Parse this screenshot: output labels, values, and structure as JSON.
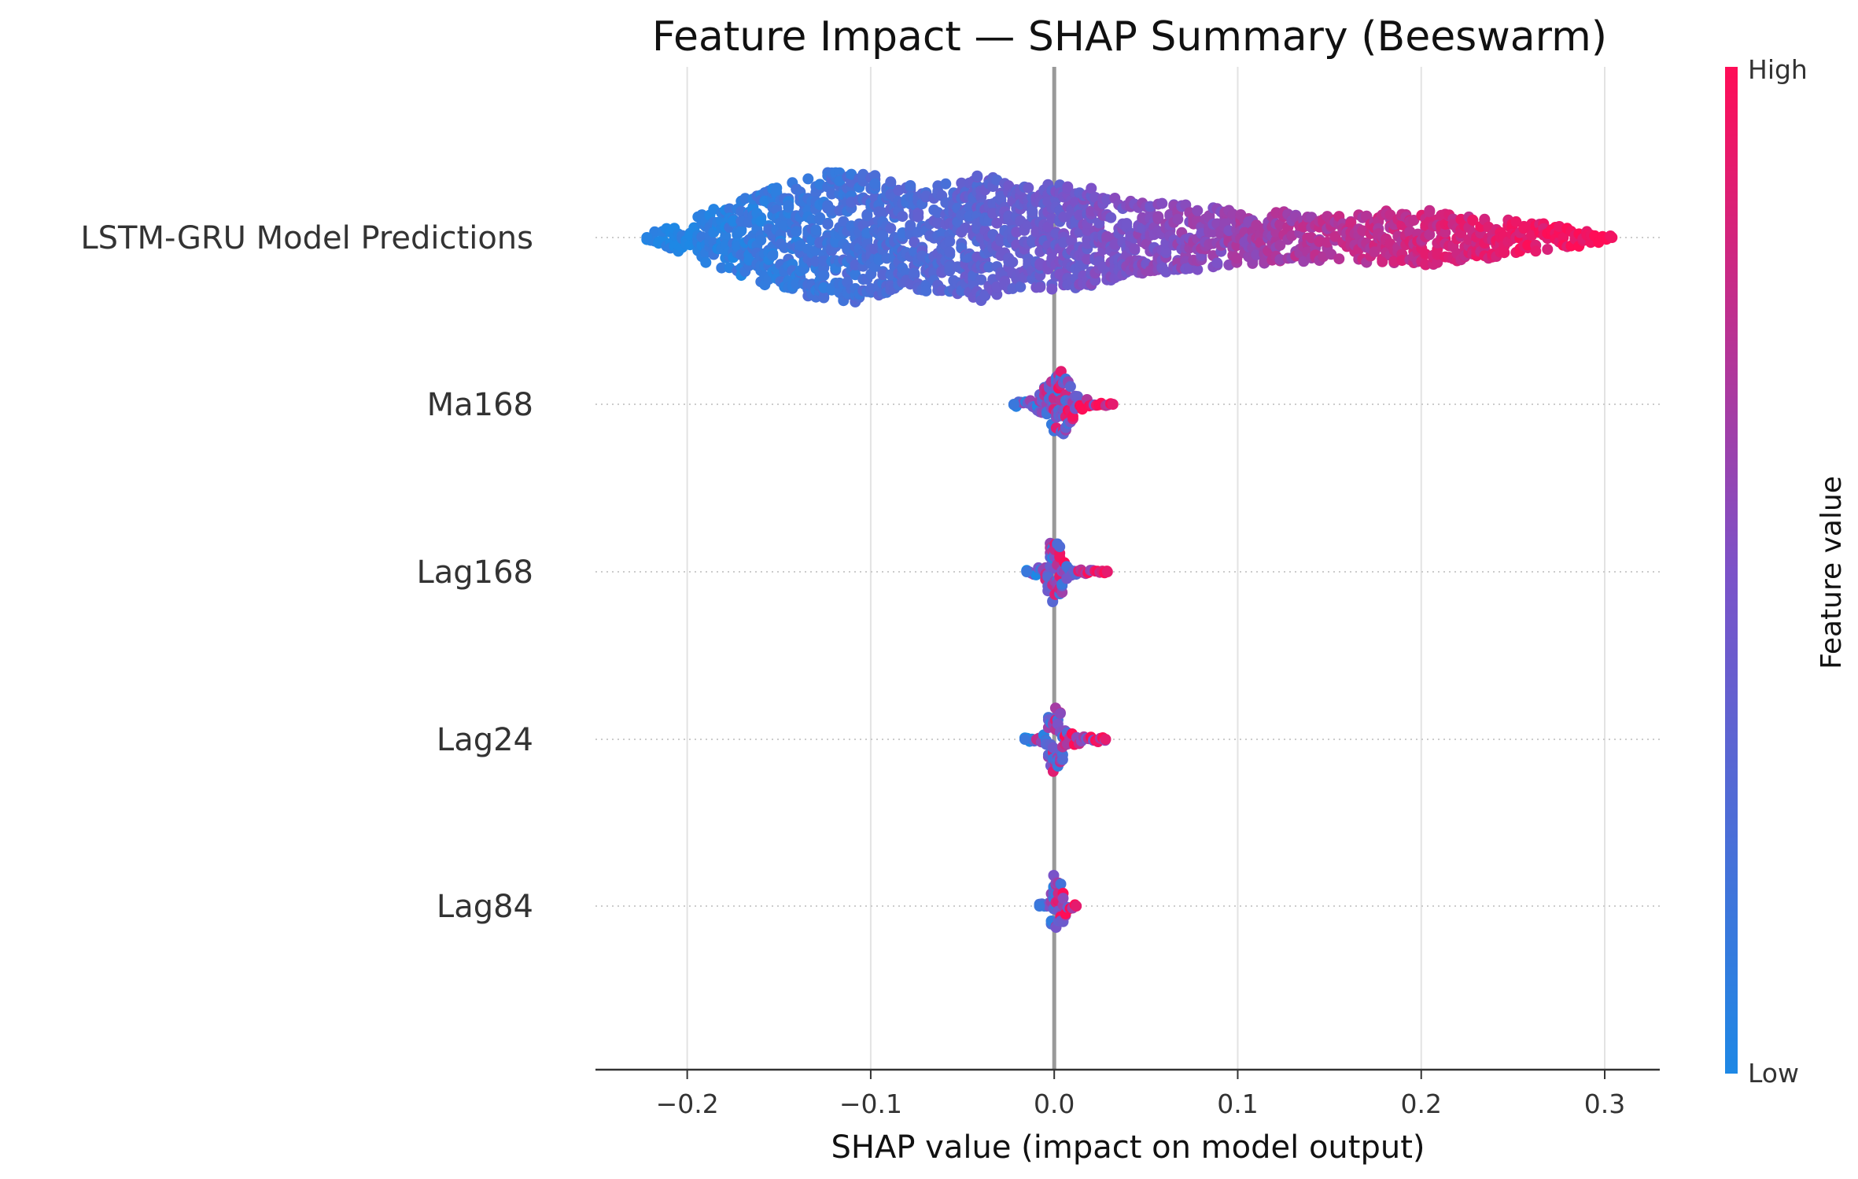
{
  "chart_data": {
    "type": "scatter",
    "subtype": "shap-beeswarm",
    "title": "Feature Impact — SHAP Summary (Beeswarm)",
    "xlabel": "SHAP value (impact on model output)",
    "ylabel": "",
    "xlim": [
      -0.25,
      0.33
    ],
    "x_ticks": [
      -0.2,
      -0.1,
      0.0,
      0.1,
      0.2,
      0.3
    ],
    "x_tick_labels": [
      "−0.2",
      "−0.1",
      "0.0",
      "0.1",
      "0.2",
      "0.3"
    ],
    "grid": "vertical",
    "zero_line": true,
    "colorbar": {
      "title": "Feature value",
      "high_label": "High",
      "low_label": "Low",
      "low_color": "#1e88e5",
      "mid_color": "#7c52c8",
      "high_color": "#ff0d57"
    },
    "features": [
      {
        "name": "LSTM-GRU Model Predictions",
        "min": -0.222,
        "max": 0.304,
        "profile": [
          [
            -0.222,
            0.1
          ],
          [
            -0.2,
            0.25
          ],
          [
            -0.18,
            0.5
          ],
          [
            -0.16,
            0.7
          ],
          [
            -0.14,
            0.85
          ],
          [
            -0.12,
            1.0
          ],
          [
            -0.1,
            0.95
          ],
          [
            -0.08,
            0.8
          ],
          [
            -0.06,
            0.8
          ],
          [
            -0.04,
            1.0
          ],
          [
            -0.02,
            0.75
          ],
          [
            0.0,
            0.8
          ],
          [
            0.02,
            0.75
          ],
          [
            0.035,
            0.6
          ],
          [
            0.05,
            0.55
          ],
          [
            0.07,
            0.5
          ],
          [
            0.1,
            0.42
          ],
          [
            0.13,
            0.38
          ],
          [
            0.16,
            0.35
          ],
          [
            0.19,
            0.42
          ],
          [
            0.21,
            0.4
          ],
          [
            0.24,
            0.3
          ],
          [
            0.27,
            0.2
          ],
          [
            0.29,
            0.12
          ],
          [
            0.304,
            0.05
          ]
        ]
      },
      {
        "name": "Ma168",
        "min": -0.022,
        "max": 0.032,
        "profile": [
          [
            -0.022,
            0.06
          ],
          [
            -0.012,
            0.12
          ],
          [
            -0.006,
            0.45
          ],
          [
            0.0,
            0.8
          ],
          [
            0.003,
            1.0
          ],
          [
            0.007,
            0.7
          ],
          [
            0.012,
            0.25
          ],
          [
            0.02,
            0.1
          ],
          [
            0.032,
            0.05
          ]
        ]
      },
      {
        "name": "Lag168",
        "min": -0.015,
        "max": 0.029,
        "profile": [
          [
            -0.015,
            0.05
          ],
          [
            -0.006,
            0.15
          ],
          [
            -0.002,
            0.9
          ],
          [
            0.0,
            1.0
          ],
          [
            0.003,
            0.8
          ],
          [
            0.008,
            0.15
          ],
          [
            0.014,
            0.06
          ],
          [
            0.029,
            0.04
          ]
        ]
      },
      {
        "name": "Lag24",
        "min": -0.016,
        "max": 0.028,
        "profile": [
          [
            -0.016,
            0.05
          ],
          [
            -0.006,
            0.12
          ],
          [
            -0.002,
            0.9
          ],
          [
            0.0,
            1.0
          ],
          [
            0.003,
            0.85
          ],
          [
            0.008,
            0.2
          ],
          [
            0.018,
            0.1
          ],
          [
            0.028,
            0.05
          ]
        ]
      },
      {
        "name": "Lag84",
        "min": -0.008,
        "max": 0.012,
        "profile": [
          [
            -0.008,
            0.06
          ],
          [
            -0.003,
            0.25
          ],
          [
            0.0,
            1.0
          ],
          [
            0.003,
            0.8
          ],
          [
            0.007,
            0.2
          ],
          [
            0.012,
            0.06
          ]
        ]
      }
    ]
  }
}
